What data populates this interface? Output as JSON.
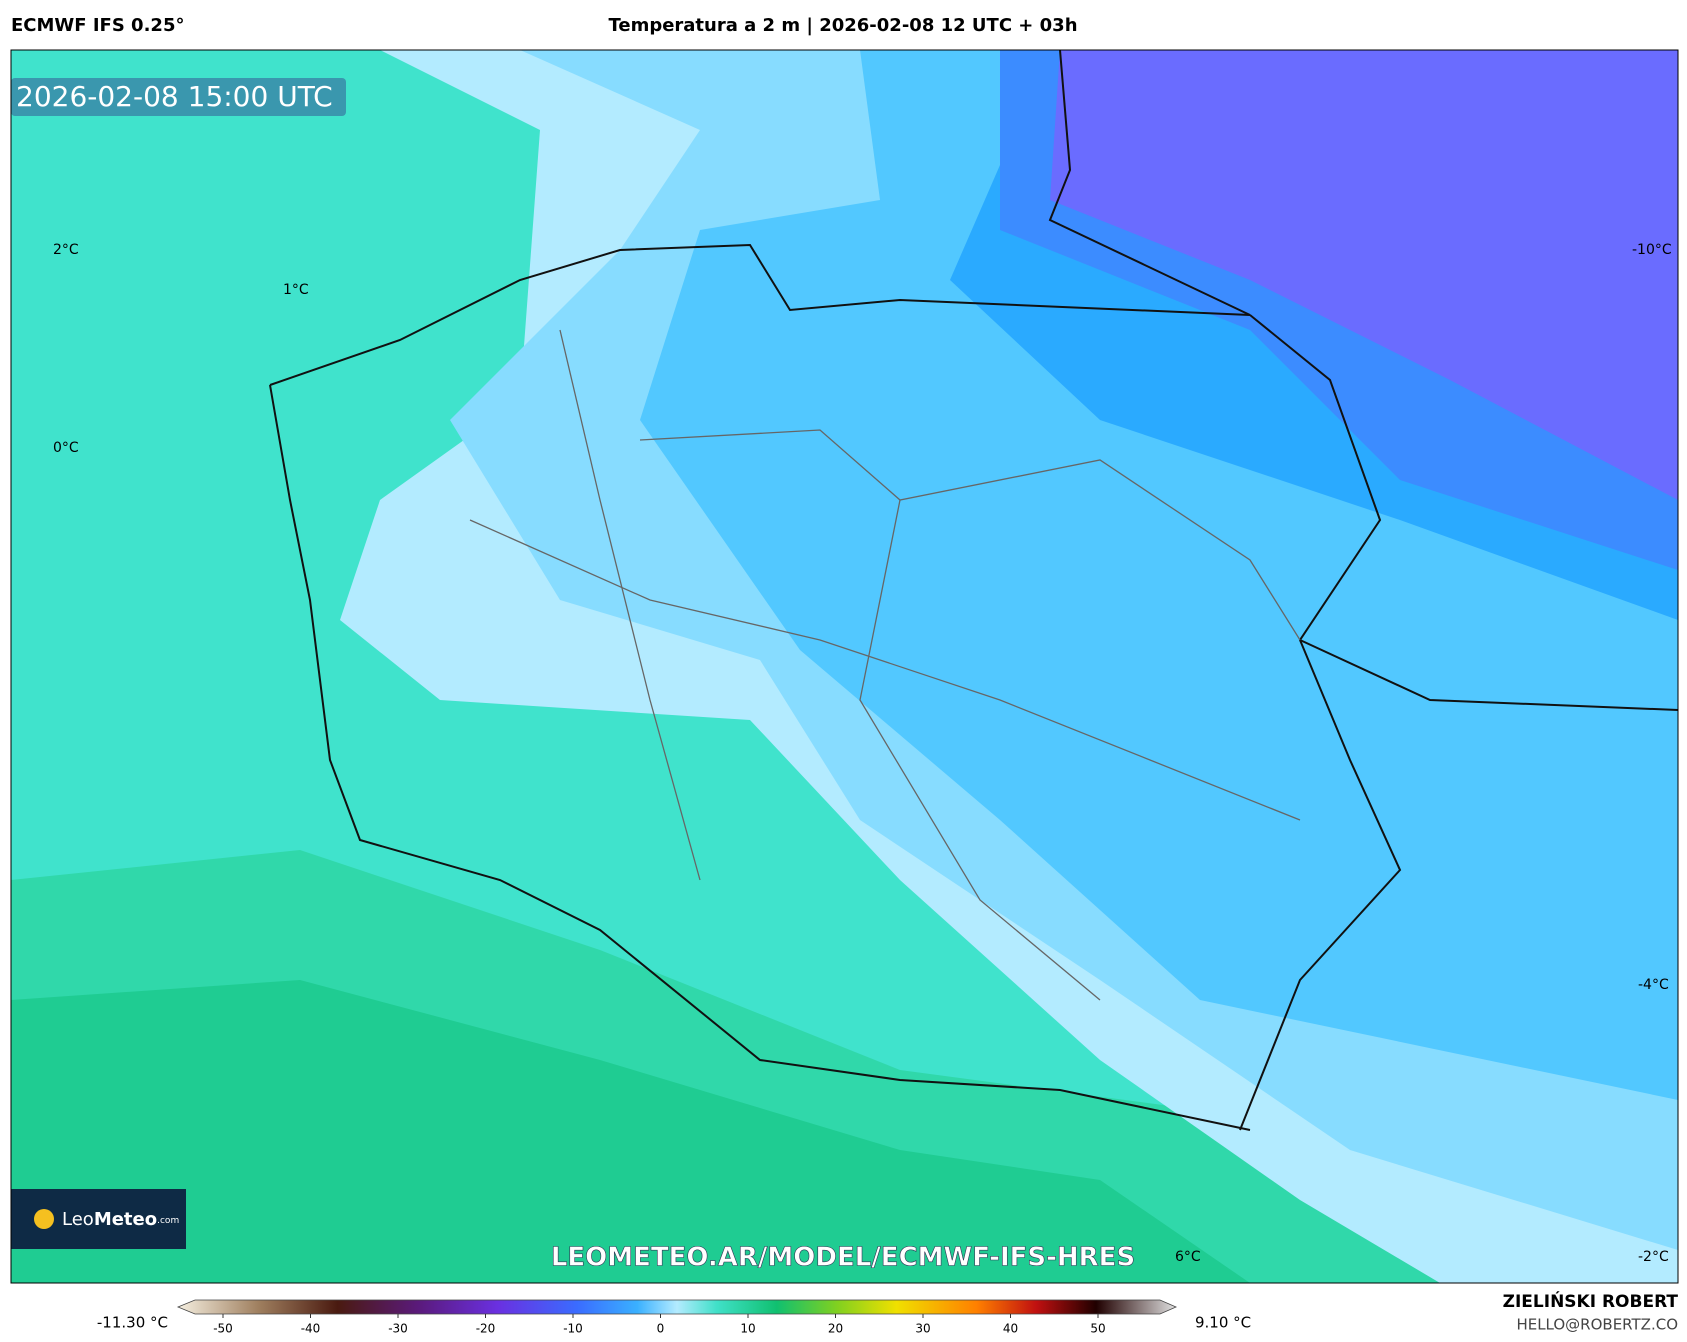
{
  "header": {
    "model": "ECMWF IFS 0.25°",
    "title": "Temperatura a 2 m | 2026-02-08 12 UTC + 03h"
  },
  "timestamp": "2026-02-08 15:00 UTC",
  "contour_labels": [
    "2°C",
    "1°C",
    "0°C",
    "-10°C",
    "-4°C",
    "6°C",
    "-2°C"
  ],
  "logo": {
    "brand_light": "Leo",
    "brand_bold": "Meteo",
    "domain": ".com"
  },
  "watermark": "LEOMETEO.AR/MODEL/ECMWF-IFS-HRES",
  "colorbar": {
    "min_label": "-11.30 °C",
    "max_label": "9.10 °C",
    "ticks": [
      -50,
      -40,
      -30,
      -20,
      -10,
      0,
      10,
      20,
      30,
      40,
      50
    ]
  },
  "author": {
    "name": "ZIELIŃSKI ROBERT",
    "email": "HELLO@ROBERTZ.CO"
  }
}
